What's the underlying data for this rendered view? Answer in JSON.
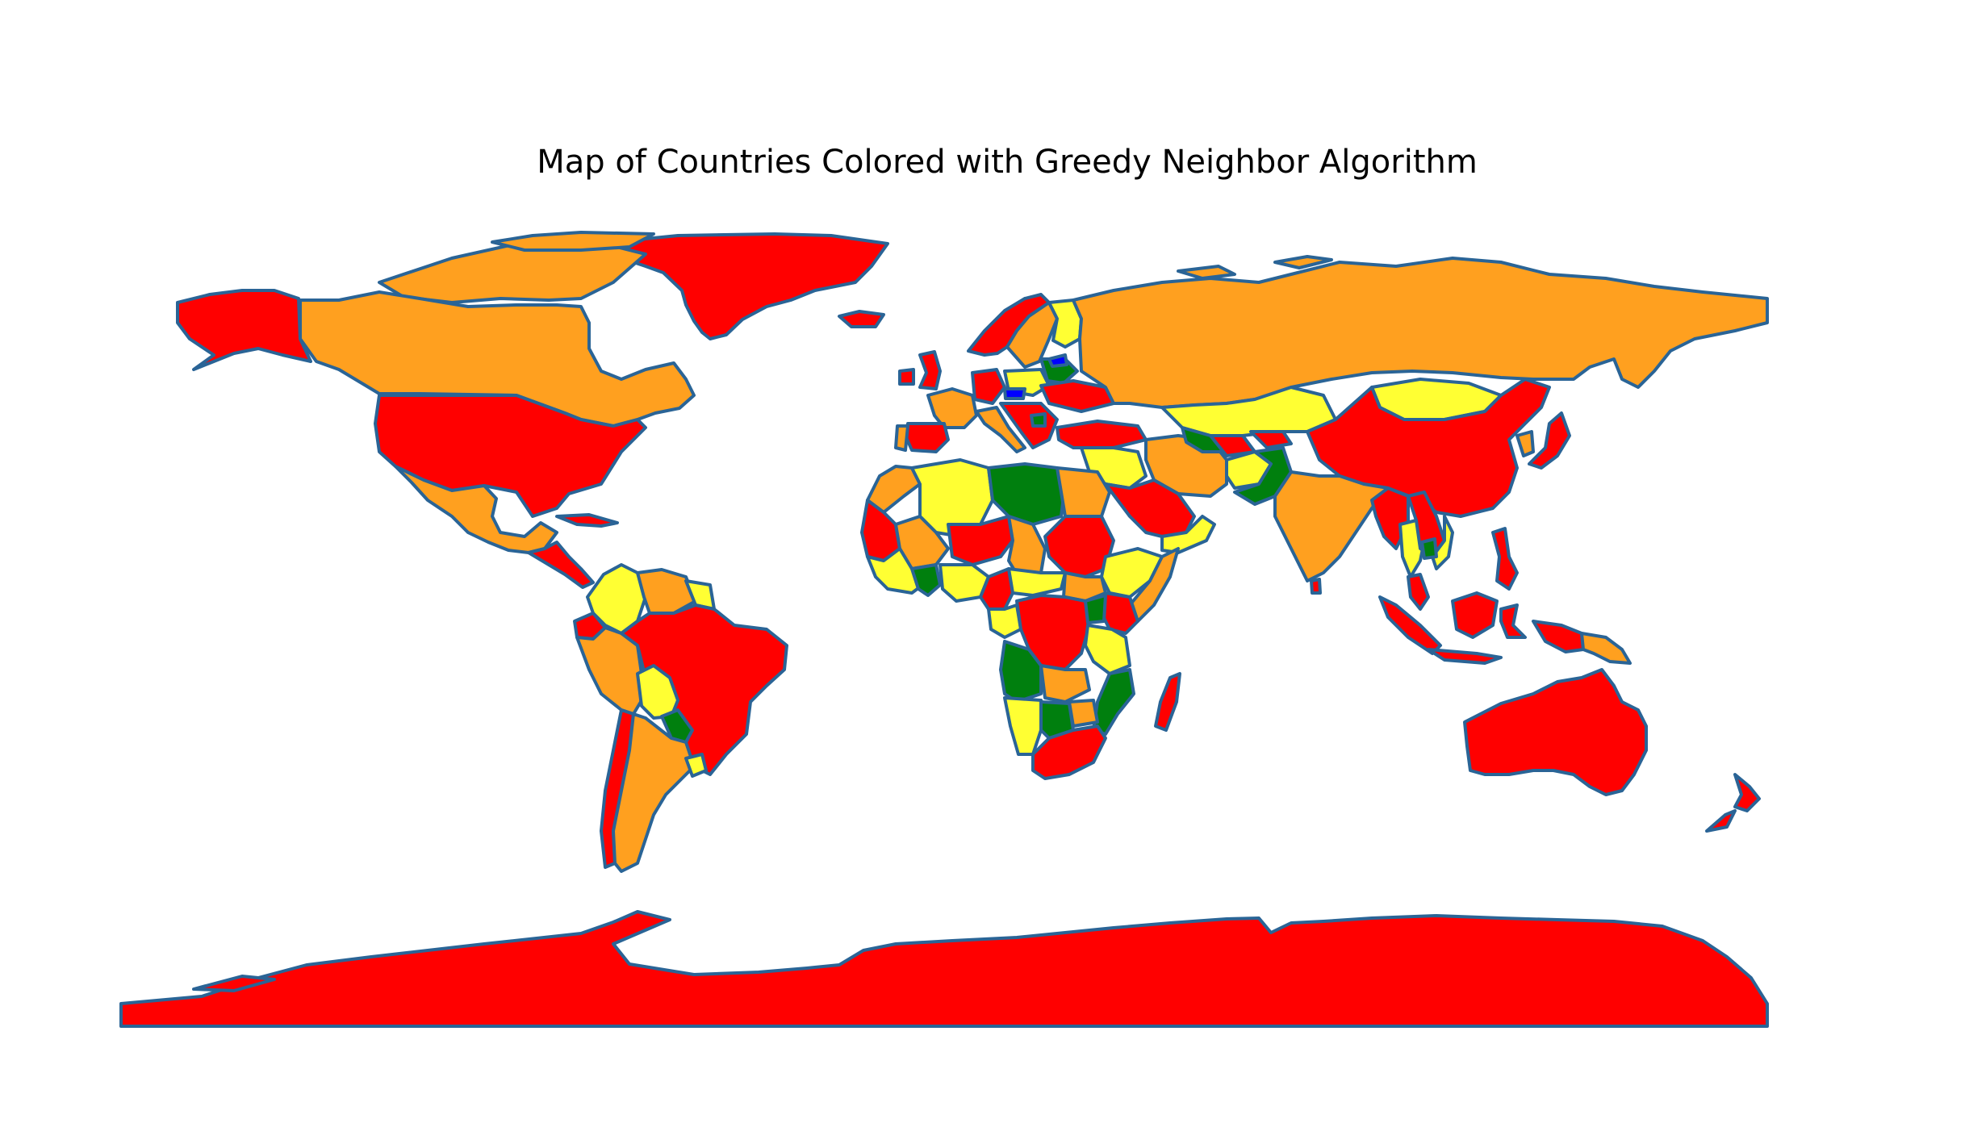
{
  "title": "Map of Countries Colored with Greedy Neighbor Algorithm",
  "palette": {
    "red": "#ff0000",
    "orange": "#ffa01f",
    "yellow": "#ffff33",
    "green": "#007f0e",
    "blue": "#0000ff",
    "border": "#2a6496"
  },
  "regions": [
    {
      "name": "antarctica",
      "color": "red"
    },
    {
      "name": "greenland",
      "color": "red"
    },
    {
      "name": "alaska",
      "color": "red"
    },
    {
      "name": "canada",
      "color": "orange"
    },
    {
      "name": "canadian-arctic-islands",
      "color": "orange"
    },
    {
      "name": "united-states",
      "color": "red"
    },
    {
      "name": "mexico",
      "color": "orange"
    },
    {
      "name": "central-america",
      "color": "red"
    },
    {
      "name": "cuba",
      "color": "red"
    },
    {
      "name": "colombia",
      "color": "yellow"
    },
    {
      "name": "venezuela",
      "color": "orange"
    },
    {
      "name": "guyana",
      "color": "yellow"
    },
    {
      "name": "ecuador",
      "color": "red"
    },
    {
      "name": "peru",
      "color": "orange"
    },
    {
      "name": "brazil",
      "color": "red"
    },
    {
      "name": "bolivia",
      "color": "yellow"
    },
    {
      "name": "paraguay",
      "color": "green"
    },
    {
      "name": "chile",
      "color": "red"
    },
    {
      "name": "argentina",
      "color": "orange"
    },
    {
      "name": "uruguay",
      "color": "yellow"
    },
    {
      "name": "iceland",
      "color": "red"
    },
    {
      "name": "norway",
      "color": "red"
    },
    {
      "name": "sweden",
      "color": "orange"
    },
    {
      "name": "finland",
      "color": "yellow"
    },
    {
      "name": "uk",
      "color": "red"
    },
    {
      "name": "ireland",
      "color": "red"
    },
    {
      "name": "france",
      "color": "orange"
    },
    {
      "name": "spain",
      "color": "red"
    },
    {
      "name": "portugal",
      "color": "orange"
    },
    {
      "name": "germany",
      "color": "red"
    },
    {
      "name": "poland",
      "color": "yellow"
    },
    {
      "name": "belarus",
      "color": "green"
    },
    {
      "name": "ukraine",
      "color": "red"
    },
    {
      "name": "italy",
      "color": "orange"
    },
    {
      "name": "balkans",
      "color": "red"
    },
    {
      "name": "central-europe-small-state",
      "color": "blue"
    },
    {
      "name": "balkan-small-state",
      "color": "green"
    },
    {
      "name": "baltic-small-state",
      "color": "blue"
    },
    {
      "name": "turkey",
      "color": "red"
    },
    {
      "name": "russia",
      "color": "orange"
    },
    {
      "name": "kazakhstan",
      "color": "yellow"
    },
    {
      "name": "mongolia",
      "color": "yellow"
    },
    {
      "name": "china",
      "color": "red"
    },
    {
      "name": "japan",
      "color": "red"
    },
    {
      "name": "korea",
      "color": "orange"
    },
    {
      "name": "middle-east",
      "color": "yellow"
    },
    {
      "name": "iran",
      "color": "orange"
    },
    {
      "name": "afghanistan",
      "color": "yellow"
    },
    {
      "name": "pakistan",
      "color": "green"
    },
    {
      "name": "turkmenistan",
      "color": "green"
    },
    {
      "name": "uzbekistan",
      "color": "red"
    },
    {
      "name": "kyrgyzstan",
      "color": "red"
    },
    {
      "name": "india",
      "color": "orange"
    },
    {
      "name": "sri-lanka",
      "color": "red"
    },
    {
      "name": "saudi-arabia",
      "color": "red"
    },
    {
      "name": "yemen-oman",
      "color": "yellow"
    },
    {
      "name": "myanmar",
      "color": "red"
    },
    {
      "name": "thailand",
      "color": "yellow"
    },
    {
      "name": "cambodia-laos",
      "color": "red"
    },
    {
      "name": "vietnam",
      "color": "yellow"
    },
    {
      "name": "laos",
      "color": "green"
    },
    {
      "name": "philippines",
      "color": "red"
    },
    {
      "name": "malaysia",
      "color": "red"
    },
    {
      "name": "borneo",
      "color": "red"
    },
    {
      "name": "sumatra",
      "color": "red"
    },
    {
      "name": "java",
      "color": "red"
    },
    {
      "name": "sulawesi",
      "color": "red"
    },
    {
      "name": "new-guinea-west",
      "color": "red"
    },
    {
      "name": "papua-new-guinea",
      "color": "orange"
    },
    {
      "name": "australia",
      "color": "red"
    },
    {
      "name": "new-zealand",
      "color": "red"
    },
    {
      "name": "morocco",
      "color": "orange"
    },
    {
      "name": "algeria",
      "color": "yellow"
    },
    {
      "name": "libya",
      "color": "green"
    },
    {
      "name": "egypt",
      "color": "orange"
    },
    {
      "name": "mauritania",
      "color": "red"
    },
    {
      "name": "mali",
      "color": "orange"
    },
    {
      "name": "niger",
      "color": "red"
    },
    {
      "name": "chad",
      "color": "orange"
    },
    {
      "name": "sudan",
      "color": "red"
    },
    {
      "name": "ethiopia",
      "color": "yellow"
    },
    {
      "name": "somalia",
      "color": "orange"
    },
    {
      "name": "west-africa",
      "color": "yellow"
    },
    {
      "name": "west-africa-small",
      "color": "green"
    },
    {
      "name": "nigeria",
      "color": "yellow"
    },
    {
      "name": "cameroon",
      "color": "red"
    },
    {
      "name": "central-african-republic",
      "color": "yellow"
    },
    {
      "name": "south-sudan",
      "color": "orange"
    },
    {
      "name": "gabon-congo",
      "color": "yellow"
    },
    {
      "name": "dr-congo",
      "color": "red"
    },
    {
      "name": "kenya",
      "color": "red"
    },
    {
      "name": "uganda",
      "color": "green"
    },
    {
      "name": "tanzania",
      "color": "yellow"
    },
    {
      "name": "angola",
      "color": "green"
    },
    {
      "name": "zambia",
      "color": "orange"
    },
    {
      "name": "mozambique",
      "color": "green"
    },
    {
      "name": "namibia",
      "color": "yellow"
    },
    {
      "name": "botswana",
      "color": "green"
    },
    {
      "name": "zimbabwe",
      "color": "orange"
    },
    {
      "name": "south-africa",
      "color": "red"
    },
    {
      "name": "madagascar",
      "color": "red"
    }
  ]
}
